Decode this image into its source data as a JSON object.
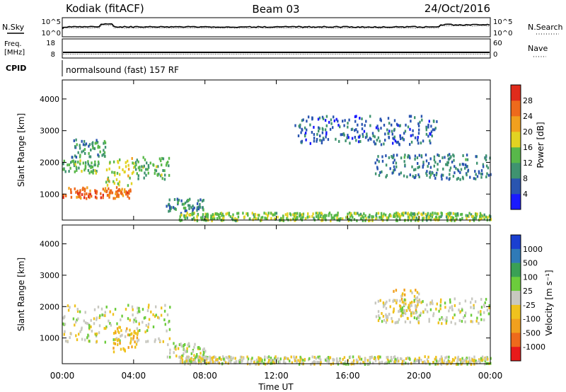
{
  "header": {
    "title_left": "Kodiak (fitACF)",
    "title_center": "Beam 03",
    "title_right": "24/Oct/2016"
  },
  "top_panels": {
    "nsky_label": "N.Sky",
    "nsearch_label": "N.Search",
    "noise_ticks": [
      "10^5",
      "10^0"
    ],
    "freq_label_1": "Freq.",
    "freq_label_2": "[MHz]",
    "freq_ticks": [
      "18",
      "8"
    ],
    "nave_label": "Nave",
    "nave_ticks": [
      "60",
      "0"
    ],
    "cpid_label": "CPID",
    "cpid_value": "normalsound (fast) 157 RF"
  },
  "colorbars": {
    "power_label": "Power [dB]",
    "power_ticks": [
      "28",
      "24",
      "20",
      "16",
      "12",
      "8",
      "4"
    ],
    "power_colors": [
      "#1a1aff",
      "#2a55b0",
      "#3f9370",
      "#58b84a",
      "#e2d322",
      "#f1a01e",
      "#ee6a1c",
      "#e02b1c"
    ],
    "velocity_label": "Velocity [m s⁻¹]",
    "velocity_ticks": [
      "1000",
      "500",
      "100",
      "25",
      "-25",
      "-100",
      "-500",
      "-1000"
    ],
    "velocity_colors": [
      "#1a3fd0",
      "#2f7ab7",
      "#3aa055",
      "#6ccc3c",
      "#c8c8c0",
      "#efc21e",
      "#f1a01e",
      "#ee6a1c",
      "#e81a1a"
    ]
  },
  "chart_data": {
    "type": "heatmap",
    "xlabel": "Time UT",
    "ylabel": "Slant Range [km]",
    "xlim": [
      0,
      24
    ],
    "ylim": [
      180,
      4600
    ],
    "x_ticks": [
      "00:00",
      "04:00",
      "08:00",
      "12:00",
      "16:00",
      "20:00",
      "00:00"
    ],
    "x_tick_values": [
      0,
      4,
      8,
      12,
      16,
      20,
      24
    ],
    "y_ticks": [
      "1000",
      "2000",
      "3000",
      "4000"
    ],
    "y_tick_values": [
      1000,
      2000,
      3000,
      4000
    ],
    "panels": [
      {
        "quantity": "Power",
        "units": "dB",
        "range": [
          0,
          30
        ],
        "regions": [
          {
            "t": [
              0.0,
              3.8
            ],
            "r": [
              900,
              1250
            ],
            "value": 24
          },
          {
            "t": [
              2.4,
              4.0
            ],
            "r": [
              1300,
              2200
            ],
            "value": 16
          },
          {
            "t": [
              0.0,
              2.0
            ],
            "r": [
              1700,
              2100
            ],
            "value": 12
          },
          {
            "t": [
              0.5,
              2.5
            ],
            "r": [
              2200,
              2800
            ],
            "value": 10
          },
          {
            "t": [
              4.0,
              6.0
            ],
            "r": [
              1500,
              2200
            ],
            "value": 12
          },
          {
            "t": [
              5.8,
              8.0
            ],
            "r": [
              400,
              900
            ],
            "value": 9
          },
          {
            "t": [
              6.5,
              24.0
            ],
            "r": [
              200,
              450
            ],
            "value": 14
          },
          {
            "t": [
              17.5,
              24.0
            ],
            "r": [
              1500,
              2300
            ],
            "value": 8
          },
          {
            "t": [
              13.0,
              21.0
            ],
            "r": [
              2600,
              3500
            ],
            "value": 6
          }
        ]
      },
      {
        "quantity": "Velocity",
        "units": "m s-1",
        "range": [
          -1000,
          1000
        ],
        "regions": [
          {
            "t": [
              0.0,
              6.0
            ],
            "r": [
              900,
              2100
            ],
            "value": 0
          },
          {
            "t": [
              2.8,
              4.2
            ],
            "r": [
              600,
              1400
            ],
            "value": -300
          },
          {
            "t": [
              5.8,
              8.0
            ],
            "r": [
              400,
              900
            ],
            "value": 50
          },
          {
            "t": [
              6.5,
              24.0
            ],
            "r": [
              200,
              450
            ],
            "value": -30
          },
          {
            "t": [
              18.5,
              20.0
            ],
            "r": [
              1800,
              2600
            ],
            "value": -200
          },
          {
            "t": [
              17.5,
              24.0
            ],
            "r": [
              1500,
              2300
            ],
            "value": 0
          }
        ]
      }
    ],
    "grid": false
  }
}
